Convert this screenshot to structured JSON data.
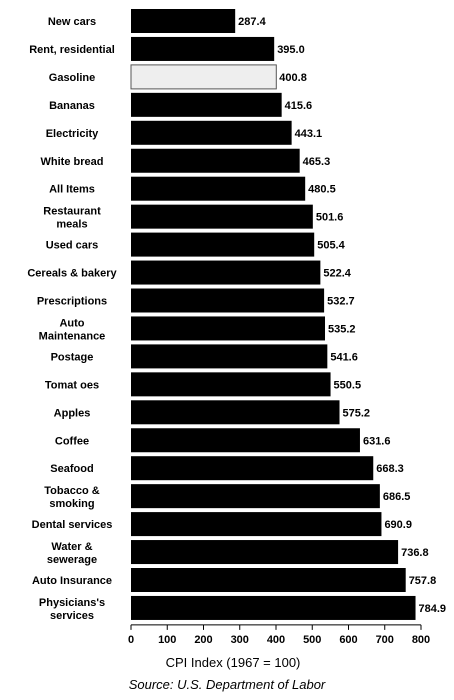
{
  "chart_data": {
    "type": "bar",
    "orientation": "horizontal",
    "categories": [
      "New cars",
      "Rent, residential",
      "Gasoline",
      "Bananas",
      "Electricity",
      "White bread",
      "All Items",
      "Restaurant meals",
      "Used cars",
      "Cereals & bakery",
      "Prescriptions",
      "Auto Maintenance",
      "Postage",
      "Tomat oes",
      "Apples",
      "Coffee",
      "Seafood",
      "Tobacco & smoking",
      "Dental services",
      "Water & sewerage",
      "Auto Insurance",
      "Physicians's services"
    ],
    "category_lines": [
      [
        "New cars"
      ],
      [
        "Rent, residential"
      ],
      [
        "Gasoline"
      ],
      [
        "Bananas"
      ],
      [
        "Electricity"
      ],
      [
        "White bread"
      ],
      [
        "All Items"
      ],
      [
        "Restaurant",
        "meals"
      ],
      [
        "Used cars"
      ],
      [
        "Cereals & bakery"
      ],
      [
        "Prescriptions"
      ],
      [
        "Auto",
        "Maintenance"
      ],
      [
        "Postage"
      ],
      [
        "Tomat oes"
      ],
      [
        "Apples"
      ],
      [
        "Coffee"
      ],
      [
        "Seafood"
      ],
      [
        "Tobacco &",
        "smoking"
      ],
      [
        "Dental services"
      ],
      [
        "Water &",
        "sewerage"
      ],
      [
        "Auto Insurance"
      ],
      [
        "Physicians's",
        "services"
      ]
    ],
    "values": [
      287.4,
      395.0,
      400.8,
      415.6,
      443.1,
      465.3,
      480.5,
      501.6,
      505.4,
      522.4,
      532.7,
      535.2,
      541.6,
      550.5,
      575.2,
      631.6,
      668.3,
      686.5,
      690.9,
      736.8,
      757.8,
      784.9
    ],
    "value_labels": [
      "287.4",
      "395.0",
      "400.8",
      "415.6",
      "443.1",
      "465.3",
      "480.5",
      "501.6",
      "505.4",
      "522.4",
      "532.7",
      "535.2",
      "541.6",
      "550.5",
      "575.2",
      "631.6",
      "668.3",
      "686.5",
      "690.9",
      "736.8",
      "757.8",
      "784.9"
    ],
    "highlight_category": "Gasoline",
    "xlim": [
      0,
      800
    ],
    "xticks": [
      "0",
      "100",
      "200",
      "300",
      "400",
      "500",
      "600",
      "700",
      "800"
    ],
    "xlabel": "CPI Index (1967 = 100)",
    "source": "Source:  U.S. Department of Labor",
    "grid": false,
    "colors": {
      "bar": "#000000",
      "highlight": "#eeeeee",
      "highlight_stroke": "#555555"
    }
  }
}
